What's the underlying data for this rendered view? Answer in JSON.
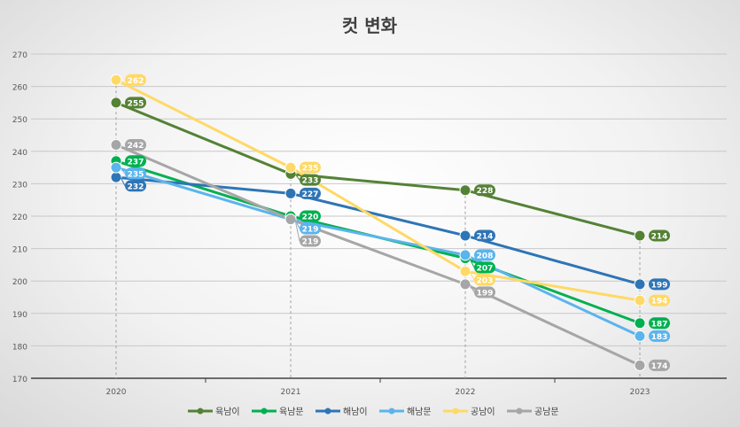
{
  "chart_data": {
    "type": "line",
    "title": "컷 변화",
    "categories": [
      "2020",
      "2021",
      "2022",
      "2023"
    ],
    "ylim": [
      170,
      270
    ],
    "yticks": [
      170,
      180,
      190,
      200,
      210,
      220,
      230,
      240,
      250,
      260,
      270
    ],
    "grid": true,
    "legend_position": "bottom",
    "series": [
      {
        "name": "육남이",
        "color": "#548235",
        "values": [
          255,
          233,
          228,
          214
        ]
      },
      {
        "name": "육남문",
        "color": "#00b050",
        "values": [
          237,
          220,
          207,
          187
        ]
      },
      {
        "name": "해남이",
        "color": "#2e75b6",
        "values": [
          232,
          227,
          214,
          199
        ]
      },
      {
        "name": "해남문",
        "color": "#5bb4ec",
        "values": [
          235,
          219,
          208,
          183
        ]
      },
      {
        "name": "공남이",
        "color": "#ffd966",
        "values": [
          262,
          235,
          203,
          194
        ]
      },
      {
        "name": "공남문",
        "color": "#a6a6a6",
        "values": [
          242,
          219,
          199,
          174
        ]
      }
    ]
  }
}
